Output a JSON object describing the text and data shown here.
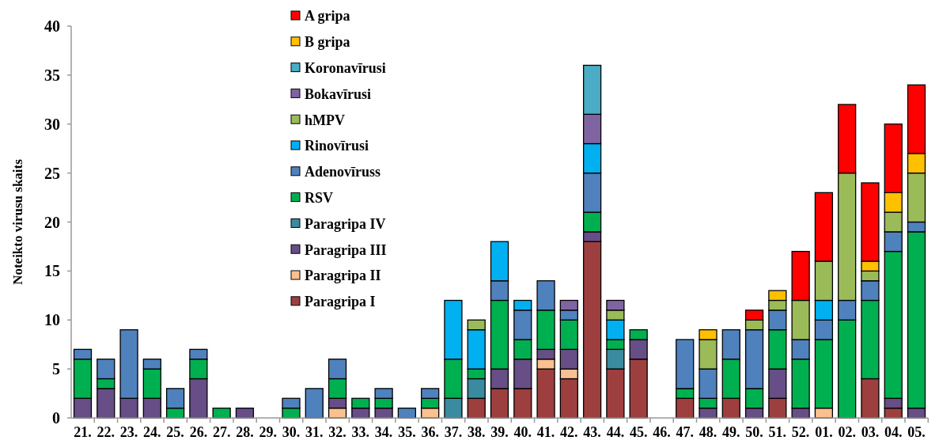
{
  "chart_data": {
    "type": "bar",
    "stacked": true,
    "ylabel": "Noteikto virusu skaits",
    "ylim": [
      0,
      40
    ],
    "yticks": [
      0,
      5,
      10,
      15,
      20,
      25,
      30,
      35,
      40
    ],
    "legend": "top",
    "grid": false,
    "categories": [
      "21.",
      "22.",
      "23.",
      "24.",
      "25.",
      "26.",
      "27.",
      "28.",
      "29.",
      "30.",
      "31.",
      "32.",
      "33.",
      "34.",
      "35.",
      "36.",
      "37.",
      "38.",
      "39.",
      "40.",
      "41.",
      "42.",
      "43.",
      "44.",
      "45.",
      "46.",
      "47.",
      "48.",
      "49.",
      "50.",
      "51.",
      "52.",
      "01.",
      "02.",
      "03.",
      "04.",
      "05."
    ],
    "series": [
      {
        "name": "Paragripa I",
        "color": "#9e3f3f",
        "values": [
          null,
          null,
          null,
          null,
          null,
          null,
          null,
          null,
          null,
          null,
          null,
          null,
          null,
          null,
          null,
          null,
          null,
          2,
          3,
          3,
          5,
          4,
          18,
          5,
          6,
          null,
          2,
          null,
          2,
          null,
          2,
          null,
          null,
          null,
          4,
          1,
          null
        ]
      },
      {
        "name": "Paragripa II",
        "color": "#fac090",
        "values": [
          null,
          null,
          null,
          null,
          null,
          null,
          null,
          null,
          null,
          null,
          null,
          1,
          null,
          null,
          null,
          1,
          null,
          null,
          null,
          null,
          1,
          1,
          null,
          null,
          null,
          null,
          null,
          null,
          null,
          null,
          null,
          null,
          1,
          null,
          null,
          null,
          null
        ]
      },
      {
        "name": "Paragripa III",
        "color": "#674e86",
        "values": [
          2,
          3,
          2,
          2,
          null,
          4,
          null,
          1,
          null,
          null,
          null,
          1,
          1,
          1,
          null,
          null,
          null,
          null,
          2,
          3,
          1,
          2,
          1,
          null,
          2,
          null,
          null,
          1,
          null,
          1,
          3,
          1,
          null,
          null,
          null,
          1,
          1
        ]
      },
      {
        "name": "Paragripa IV",
        "color": "#3b8ba0",
        "values": [
          null,
          null,
          null,
          null,
          null,
          null,
          null,
          null,
          null,
          null,
          null,
          null,
          null,
          null,
          null,
          null,
          2,
          2,
          null,
          null,
          null,
          null,
          null,
          2,
          null,
          null,
          null,
          null,
          null,
          null,
          null,
          null,
          null,
          null,
          null,
          null,
          null
        ]
      },
      {
        "name": "RSV",
        "color": "#00b050",
        "values": [
          4,
          1,
          null,
          3,
          1,
          2,
          1,
          null,
          null,
          1,
          null,
          2,
          1,
          1,
          null,
          1,
          4,
          1,
          7,
          2,
          4,
          3,
          2,
          1,
          1,
          null,
          1,
          1,
          4,
          2,
          4,
          5,
          7,
          10,
          8,
          15,
          18
        ]
      },
      {
        "name": "Adenovīruss",
        "color": "#4f81bd",
        "values": [
          1,
          2,
          7,
          1,
          2,
          1,
          null,
          null,
          null,
          1,
          3,
          2,
          null,
          1,
          1,
          1,
          null,
          null,
          2,
          3,
          3,
          1,
          4,
          null,
          null,
          null,
          5,
          3,
          3,
          6,
          2,
          2,
          2,
          2,
          2,
          2,
          1
        ]
      },
      {
        "name": "Rinovīrusi",
        "color": "#00b0f0",
        "values": [
          null,
          null,
          null,
          null,
          null,
          null,
          null,
          null,
          null,
          null,
          null,
          null,
          null,
          null,
          null,
          null,
          6,
          4,
          4,
          1,
          null,
          null,
          3,
          2,
          null,
          null,
          null,
          null,
          null,
          null,
          null,
          null,
          2,
          null,
          null,
          null,
          null
        ]
      },
      {
        "name": "hMPV",
        "color": "#9bbb59",
        "values": [
          null,
          null,
          null,
          null,
          null,
          null,
          null,
          null,
          null,
          null,
          null,
          null,
          null,
          null,
          null,
          null,
          null,
          1,
          null,
          null,
          null,
          null,
          null,
          1,
          null,
          null,
          null,
          3,
          null,
          1,
          1,
          4,
          4,
          13,
          1,
          2,
          5
        ]
      },
      {
        "name": "Bokavīrusi",
        "color": "#8064a2",
        "values": [
          null,
          null,
          null,
          null,
          null,
          null,
          null,
          null,
          null,
          null,
          null,
          null,
          null,
          null,
          null,
          null,
          null,
          null,
          null,
          null,
          null,
          1,
          3,
          1,
          null,
          null,
          null,
          null,
          null,
          null,
          null,
          null,
          null,
          null,
          null,
          null,
          null
        ]
      },
      {
        "name": "Koronavīrusi",
        "color": "#4bacc6",
        "values": [
          null,
          null,
          null,
          null,
          null,
          null,
          null,
          null,
          null,
          null,
          null,
          null,
          null,
          null,
          null,
          null,
          null,
          null,
          null,
          null,
          null,
          null,
          5,
          null,
          null,
          null,
          null,
          null,
          null,
          null,
          null,
          null,
          null,
          null,
          null,
          null,
          null
        ]
      },
      {
        "name": "B gripa",
        "color": "#ffc000",
        "values": [
          null,
          null,
          null,
          null,
          null,
          null,
          null,
          null,
          null,
          null,
          null,
          null,
          null,
          null,
          null,
          null,
          null,
          null,
          null,
          null,
          null,
          null,
          null,
          null,
          null,
          null,
          null,
          1,
          null,
          null,
          1,
          null,
          null,
          null,
          1,
          2,
          2
        ]
      },
      {
        "name": "A gripa",
        "color": "#ff0000",
        "values": [
          null,
          null,
          null,
          null,
          null,
          null,
          null,
          null,
          null,
          null,
          null,
          null,
          null,
          null,
          null,
          null,
          null,
          null,
          null,
          null,
          null,
          null,
          null,
          null,
          null,
          null,
          null,
          null,
          null,
          1,
          null,
          5,
          7,
          7,
          8,
          7,
          7
        ]
      }
    ]
  }
}
